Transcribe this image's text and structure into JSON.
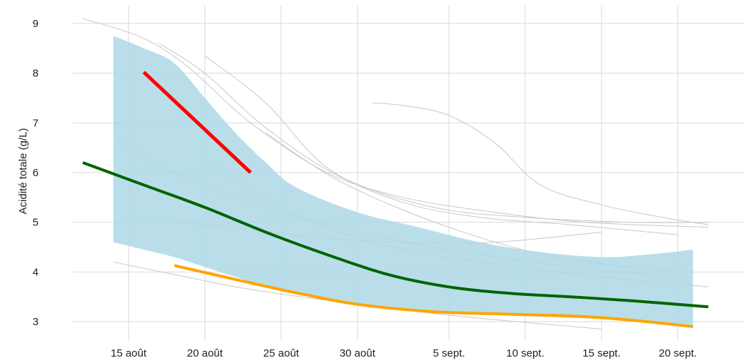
{
  "chart_data": {
    "type": "line",
    "title": "",
    "xlabel": "",
    "ylabel": "Acidité totale (g/L)",
    "x_range": [
      "2024-08-12",
      "2024-09-23"
    ],
    "ylim": [
      2.8,
      9.3
    ],
    "grid": true,
    "legend": "none",
    "x_ticks": [
      {
        "date": "2024-08-15",
        "label": "15 août"
      },
      {
        "date": "2024-08-20",
        "label": "20 août"
      },
      {
        "date": "2024-08-25",
        "label": "25 août"
      },
      {
        "date": "2024-08-30",
        "label": "30 août"
      },
      {
        "date": "2024-09-05",
        "label": "5 sept."
      },
      {
        "date": "2024-09-10",
        "label": "10 sept."
      },
      {
        "date": "2024-09-15",
        "label": "15 sept."
      },
      {
        "date": "2024-09-20",
        "label": "20 sept."
      }
    ],
    "y_ticks": [
      3,
      4,
      5,
      6,
      7,
      8,
      9
    ],
    "colors": {
      "band": "#add8e6",
      "median": "#006400",
      "highlight_low": "#ffa500",
      "highlight_high": "#ff0000",
      "background_series": "#c8c8c8",
      "grid": "#d9d9d9"
    },
    "band": {
      "x": [
        "2024-08-14",
        "2024-08-16",
        "2024-08-18",
        "2024-08-20",
        "2024-08-22",
        "2024-08-24",
        "2024-08-26",
        "2024-08-30",
        "2024-09-03",
        "2024-09-07",
        "2024-09-11",
        "2024-09-15",
        "2024-09-18",
        "2024-09-21"
      ],
      "upper": [
        8.75,
        8.5,
        8.2,
        7.5,
        6.8,
        6.2,
        5.7,
        5.2,
        4.9,
        4.6,
        4.4,
        4.3,
        4.35,
        4.45
      ],
      "lower": [
        4.6,
        4.45,
        4.3,
        4.1,
        3.9,
        3.7,
        3.55,
        3.35,
        3.2,
        3.15,
        3.1,
        3.05,
        2.98,
        2.9
      ]
    },
    "series": [
      {
        "role": "median",
        "x": [
          "2024-08-12",
          "2024-08-16",
          "2024-08-20",
          "2024-08-24",
          "2024-08-28",
          "2024-09-01",
          "2024-09-05",
          "2024-09-09",
          "2024-09-13",
          "2024-09-17",
          "2024-09-22"
        ],
        "values": [
          6.2,
          5.75,
          5.3,
          4.8,
          4.35,
          3.95,
          3.7,
          3.57,
          3.5,
          3.42,
          3.3
        ]
      },
      {
        "role": "highlight_low",
        "x": [
          "2024-08-18",
          "2024-08-22",
          "2024-08-26",
          "2024-08-30",
          "2024-09-04",
          "2024-09-09",
          "2024-09-14",
          "2024-09-18",
          "2024-09-21"
        ],
        "values": [
          4.13,
          3.85,
          3.58,
          3.35,
          3.2,
          3.15,
          3.1,
          3.0,
          2.9
        ]
      },
      {
        "role": "highlight_high",
        "x": [
          "2024-08-16",
          "2024-08-23"
        ],
        "values": [
          8.02,
          6.0
        ]
      }
    ],
    "background_series": [
      {
        "x": [
          "2024-08-12",
          "2024-08-16",
          "2024-08-19",
          "2024-08-23",
          "2024-08-28",
          "2024-09-02",
          "2024-09-08",
          "2024-09-14",
          "2024-09-22"
        ],
        "values": [
          9.1,
          8.7,
          8.1,
          7.0,
          6.0,
          5.5,
          5.2,
          5.0,
          4.9
        ]
      },
      {
        "x": [
          "2024-08-17",
          "2024-08-20",
          "2024-08-24",
          "2024-08-29",
          "2024-09-04",
          "2024-09-10",
          "2024-09-17",
          "2024-09-22"
        ],
        "values": [
          8.6,
          8.0,
          6.9,
          5.9,
          5.3,
          5.1,
          5.0,
          5.0
        ]
      },
      {
        "x": [
          "2024-08-20",
          "2024-08-24",
          "2024-08-28",
          "2024-09-02",
          "2024-09-07",
          "2024-09-13",
          "2024-09-20"
        ],
        "values": [
          8.35,
          7.4,
          6.1,
          5.4,
          5.1,
          4.95,
          4.75
        ]
      },
      {
        "x": [
          "2024-08-31",
          "2024-09-02",
          "2024-09-05",
          "2024-09-08",
          "2024-09-11",
          "2024-09-15",
          "2024-09-19",
          "2024-09-22"
        ],
        "values": [
          7.4,
          7.35,
          7.15,
          6.6,
          5.75,
          5.35,
          5.1,
          4.95
        ]
      },
      {
        "x": [
          "2024-08-18",
          "2024-08-22",
          "2024-08-27",
          "2024-09-02",
          "2024-09-08",
          "2024-09-15"
        ],
        "values": [
          5.0,
          4.9,
          4.7,
          4.6,
          4.6,
          4.8
        ]
      },
      {
        "x": [
          "2024-08-14",
          "2024-08-18",
          "2024-08-23",
          "2024-08-30",
          "2024-09-06",
          "2024-09-13",
          "2024-09-20"
        ],
        "values": [
          6.7,
          6.0,
          5.4,
          4.8,
          4.4,
          4.1,
          3.9
        ]
      },
      {
        "x": [
          "2024-08-14",
          "2024-08-18",
          "2024-08-23",
          "2024-08-30",
          "2024-09-06",
          "2024-09-15"
        ],
        "values": [
          4.2,
          3.95,
          3.65,
          3.35,
          3.1,
          2.85
        ]
      },
      {
        "x": [
          "2024-08-20",
          "2024-08-25",
          "2024-08-31",
          "2024-09-07",
          "2024-09-15",
          "2024-09-22"
        ],
        "values": [
          6.3,
          5.3,
          4.6,
          4.2,
          3.9,
          3.7
        ]
      },
      {
        "x": [
          "2024-08-24",
          "2024-08-29",
          "2024-09-05",
          "2024-09-12",
          "2024-09-20"
        ],
        "values": [
          6.8,
          5.8,
          4.9,
          4.3,
          4.0
        ]
      }
    ]
  }
}
